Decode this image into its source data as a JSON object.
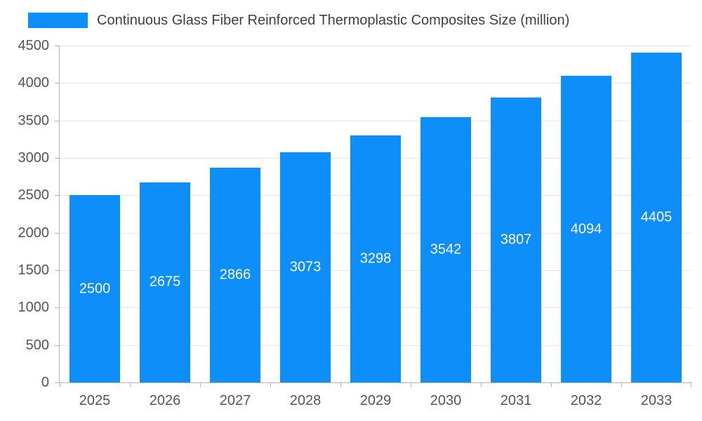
{
  "chart_data": {
    "type": "bar",
    "title": "Continuous Glass Fiber Reinforced Thermoplastic Composites Size (million)",
    "categories": [
      "2025",
      "2026",
      "2027",
      "2028",
      "2029",
      "2030",
      "2031",
      "2032",
      "2033"
    ],
    "values": [
      2500,
      2675,
      2866,
      3073,
      3298,
      3542,
      3807,
      4094,
      4405
    ],
    "xlabel": "",
    "ylabel": "",
    "ylim": [
      0,
      4500
    ],
    "ytick_step": 500,
    "grid": true,
    "legend_position": "top-left",
    "data_labels": true,
    "colors": {
      "bar": "#0d8ef8",
      "bar_label": "#ffffff",
      "grid": "#e6e6e6",
      "axis": "#b3b3b3",
      "tick_label": "#555555",
      "title": "#404040"
    }
  }
}
